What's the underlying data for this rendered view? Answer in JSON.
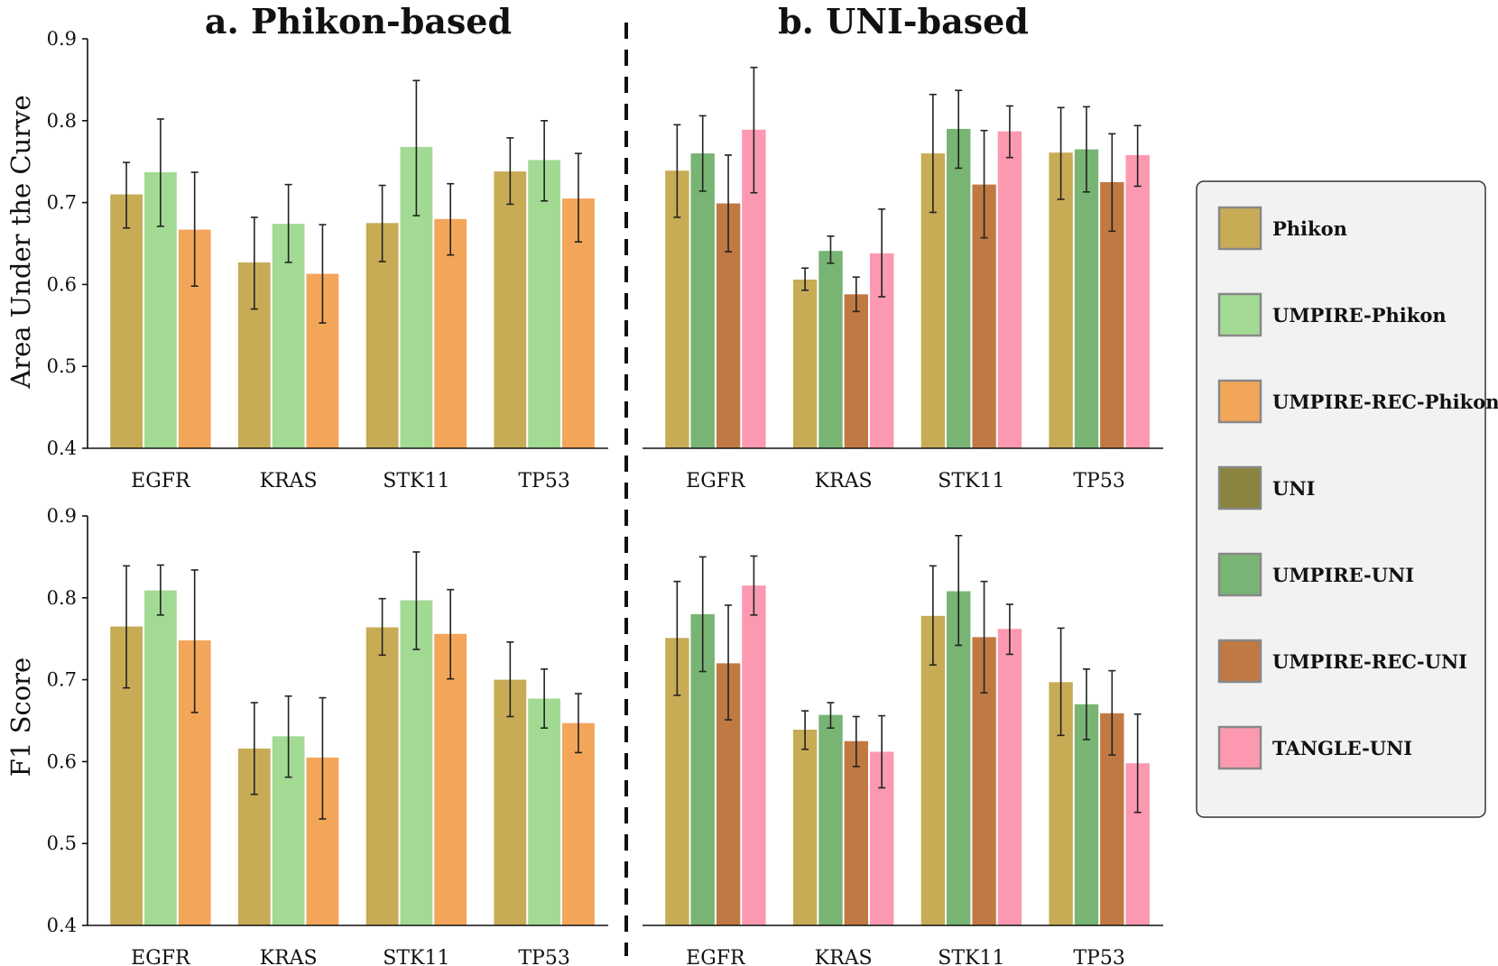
{
  "chart_data": [
    {
      "type": "bar",
      "panel": "a",
      "title": "a. Phikon-based",
      "ylabel": "Area Under the Curve",
      "ylim": [
        0.4,
        0.9
      ],
      "yticks": [
        "0.4",
        "0.5",
        "0.6",
        "0.7",
        "0.8",
        "0.9"
      ],
      "categories": [
        "EGFR",
        "KRAS",
        "STK11",
        "TP53"
      ],
      "series": [
        {
          "name": "Phikon",
          "color": "#c8ab55",
          "values": [
            0.71,
            0.627,
            0.675,
            0.738
          ],
          "err_low": [
            0.669,
            0.57,
            0.628,
            0.698
          ],
          "err_high": [
            0.749,
            0.682,
            0.721,
            0.779
          ]
        },
        {
          "name": "UMPIRE-Phikon",
          "color": "#a2da94",
          "values": [
            0.737,
            0.674,
            0.768,
            0.752
          ],
          "err_low": [
            0.671,
            0.627,
            0.684,
            0.702
          ],
          "err_high": [
            0.802,
            0.722,
            0.849,
            0.8
          ]
        },
        {
          "name": "UMPIRE-REC-Phikon",
          "color": "#f3a55a",
          "values": [
            0.667,
            0.613,
            0.68,
            0.705
          ],
          "err_low": [
            0.598,
            0.553,
            0.636,
            0.652
          ],
          "err_high": [
            0.737,
            0.673,
            0.723,
            0.76
          ]
        }
      ]
    },
    {
      "type": "bar",
      "panel": "b",
      "title": "b. UNI-based",
      "ylabel": "",
      "ylim": [
        0.4,
        0.9
      ],
      "categories": [
        "EGFR",
        "KRAS",
        "STK11",
        "TP53"
      ],
      "series": [
        {
          "name": "Phikon",
          "color": "#c8ab55",
          "values": [
            0.739,
            0.606,
            0.76,
            0.761
          ],
          "err_low": [
            0.682,
            0.593,
            0.688,
            0.704
          ],
          "err_high": [
            0.795,
            0.62,
            0.832,
            0.816
          ]
        },
        {
          "name": "UMPIRE-UNI",
          "color": "#78b474",
          "values": [
            0.76,
            0.641,
            0.79,
            0.765
          ],
          "err_low": [
            0.714,
            0.626,
            0.742,
            0.713
          ],
          "err_high": [
            0.806,
            0.659,
            0.837,
            0.817
          ]
        },
        {
          "name": "UMPIRE-REC-UNI",
          "color": "#c17943",
          "values": [
            0.699,
            0.588,
            0.722,
            0.725
          ],
          "err_low": [
            0.64,
            0.567,
            0.657,
            0.665
          ],
          "err_high": [
            0.758,
            0.609,
            0.788,
            0.784
          ]
        },
        {
          "name": "TANGLE-UNI",
          "color": "#fc99b1",
          "values": [
            0.789,
            0.638,
            0.787,
            0.758
          ],
          "err_low": [
            0.712,
            0.585,
            0.755,
            0.72
          ],
          "err_high": [
            0.865,
            0.692,
            0.818,
            0.794
          ]
        }
      ]
    },
    {
      "type": "bar",
      "panel": "a",
      "title": "",
      "ylabel": "F1 Score",
      "ylim": [
        0.4,
        0.9
      ],
      "yticks": [
        "0.4",
        "0.5",
        "0.6",
        "0.7",
        "0.8",
        "0.9"
      ],
      "categories": [
        "EGFR",
        "KRAS",
        "STK11",
        "TP53"
      ],
      "series": [
        {
          "name": "Phikon",
          "color": "#c8ab55",
          "values": [
            0.765,
            0.616,
            0.764,
            0.7
          ],
          "err_low": [
            0.69,
            0.56,
            0.73,
            0.655
          ],
          "err_high": [
            0.839,
            0.672,
            0.799,
            0.746
          ]
        },
        {
          "name": "UMPIRE-Phikon",
          "color": "#a2da94",
          "values": [
            0.809,
            0.631,
            0.797,
            0.677
          ],
          "err_low": [
            0.779,
            0.581,
            0.737,
            0.641
          ],
          "err_high": [
            0.84,
            0.68,
            0.856,
            0.713
          ]
        },
        {
          "name": "UMPIRE-REC-Phikon",
          "color": "#f3a55a",
          "values": [
            0.748,
            0.605,
            0.756,
            0.647
          ],
          "err_low": [
            0.66,
            0.53,
            0.701,
            0.611
          ],
          "err_high": [
            0.834,
            0.678,
            0.81,
            0.683
          ]
        }
      ]
    },
    {
      "type": "bar",
      "panel": "b",
      "title": "",
      "ylabel": "",
      "ylim": [
        0.4,
        0.9
      ],
      "categories": [
        "EGFR",
        "KRAS",
        "STK11",
        "TP53"
      ],
      "series": [
        {
          "name": "Phikon",
          "color": "#c8ab55",
          "values": [
            0.751,
            0.639,
            0.778,
            0.697
          ],
          "err_low": [
            0.681,
            0.615,
            0.718,
            0.632
          ],
          "err_high": [
            0.82,
            0.662,
            0.839,
            0.763
          ]
        },
        {
          "name": "UMPIRE-UNI",
          "color": "#78b474",
          "values": [
            0.78,
            0.657,
            0.808,
            0.67
          ],
          "err_low": [
            0.71,
            0.641,
            0.742,
            0.627
          ],
          "err_high": [
            0.85,
            0.672,
            0.876,
            0.713
          ]
        },
        {
          "name": "UMPIRE-REC-UNI",
          "color": "#c17943",
          "values": [
            0.72,
            0.625,
            0.752,
            0.659
          ],
          "err_low": [
            0.651,
            0.594,
            0.684,
            0.608
          ],
          "err_high": [
            0.791,
            0.655,
            0.82,
            0.711
          ]
        },
        {
          "name": "TANGLE-UNI",
          "color": "#fc99b1",
          "values": [
            0.815,
            0.612,
            0.762,
            0.598
          ],
          "err_low": [
            0.779,
            0.568,
            0.731,
            0.538
          ],
          "err_high": [
            0.851,
            0.656,
            0.792,
            0.658
          ]
        }
      ]
    }
  ],
  "legend": {
    "position": "right",
    "items": [
      {
        "label": "Phikon",
        "color": "#c8ab55"
      },
      {
        "label": "UMPIRE-Phikon",
        "color": "#a2da94"
      },
      {
        "label": "UMPIRE-REC-Phikon",
        "color": "#f3a55a"
      },
      {
        "label": "UNI",
        "color": "#8b843e"
      },
      {
        "label": "UMPIRE-UNI",
        "color": "#78b474"
      },
      {
        "label": "UMPIRE-REC-UNI",
        "color": "#c17943"
      },
      {
        "label": "TANGLE-UNI",
        "color": "#fc99b1"
      }
    ]
  },
  "divider": "dashed"
}
